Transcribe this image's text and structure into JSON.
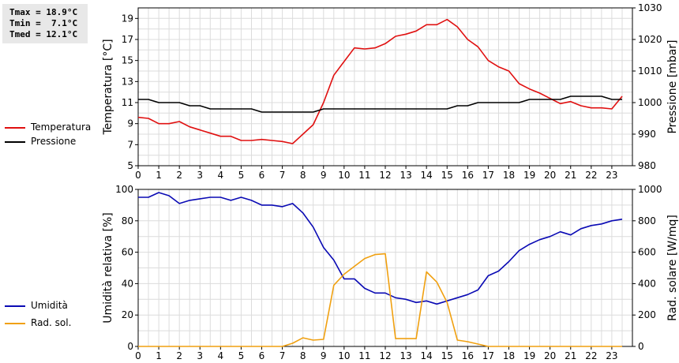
{
  "stats": {
    "tmax": "Tmax = 18.9°C",
    "tmin": "Tmin =  7.1°C",
    "tmed": "Tmed = 12.1°C"
  },
  "legend": {
    "temperature": {
      "label": "Temperatura",
      "color": "#e01010"
    },
    "pressure": {
      "label": "Pressione",
      "color": "#000000"
    },
    "humidity": {
      "label": "Umidità",
      "color": "#0a0ab4"
    },
    "solar": {
      "label": "Rad. sol.",
      "color": "#f0a010"
    }
  },
  "chart_data": [
    {
      "type": "line",
      "xlim": [
        0,
        24
      ],
      "x_ticks": [
        0,
        1,
        2,
        3,
        4,
        5,
        6,
        7,
        8,
        9,
        10,
        11,
        12,
        13,
        14,
        15,
        16,
        17,
        18,
        19,
        20,
        21,
        22,
        23
      ],
      "ylabel": "Temperatura [°C]",
      "ylim": [
        5,
        20
      ],
      "y_ticks": [
        5,
        7,
        9,
        11,
        13,
        15,
        17,
        19
      ],
      "y2label": "Pressione [mbar]",
      "y2lim": [
        980,
        1030
      ],
      "y2_ticks": [
        980,
        990,
        1000,
        1010,
        1020,
        1030
      ],
      "grid": true,
      "series": [
        {
          "name": "Temperatura",
          "axis": "left",
          "color": "#e01010",
          "x": [
            0,
            0.5,
            1,
            1.5,
            2,
            2.5,
            3,
            3.5,
            4,
            4.5,
            5,
            5.5,
            6,
            6.5,
            7,
            7.5,
            8,
            8.5,
            9,
            9.5,
            10,
            10.5,
            11,
            11.5,
            12,
            12.5,
            13,
            13.5,
            14,
            14.5,
            15,
            15.5,
            16,
            16.5,
            17,
            17.5,
            18,
            18.5,
            19,
            19.5,
            20,
            20.5,
            21,
            21.5,
            22,
            22.5,
            23,
            23.5
          ],
          "y": [
            9.6,
            9.5,
            9.0,
            9.0,
            9.2,
            8.7,
            8.4,
            8.1,
            7.8,
            7.8,
            7.4,
            7.4,
            7.5,
            7.4,
            7.3,
            7.1,
            8.0,
            8.9,
            11.0,
            13.6,
            14.9,
            16.2,
            16.1,
            16.2,
            16.6,
            17.3,
            17.5,
            17.8,
            18.4,
            18.4,
            18.9,
            18.2,
            17.0,
            16.3,
            15.0,
            14.4,
            14.0,
            12.8,
            12.3,
            11.9,
            11.4,
            10.9,
            11.1,
            10.7,
            10.5,
            10.5,
            10.4,
            11.6
          ]
        },
        {
          "name": "Pressione",
          "axis": "right",
          "color": "#000000",
          "x": [
            0,
            0.5,
            1,
            1.5,
            2,
            2.5,
            3,
            3.5,
            4,
            4.5,
            5,
            5.5,
            6,
            6.5,
            7,
            7.5,
            8,
            8.5,
            9,
            9.5,
            10,
            10.5,
            11,
            11.5,
            12,
            12.5,
            13,
            13.5,
            14,
            14.5,
            15,
            15.5,
            16,
            16.5,
            17,
            17.5,
            18,
            18.5,
            19,
            19.5,
            20,
            20.5,
            21,
            21.5,
            22,
            22.5,
            23,
            23.5
          ],
          "y": [
            1001,
            1001,
            1000,
            1000,
            1000,
            999,
            999,
            998,
            998,
            998,
            998,
            998,
            997,
            997,
            997,
            997,
            997,
            997,
            998,
            998,
            998,
            998,
            998,
            998,
            998,
            998,
            998,
            998,
            998,
            998,
            998,
            999,
            999,
            1000,
            1000,
            1000,
            1000,
            1000,
            1001,
            1001,
            1001,
            1001,
            1002,
            1002,
            1002,
            1002,
            1001,
            1001
          ]
        }
      ]
    },
    {
      "type": "line",
      "xlim": [
        0,
        24
      ],
      "x_ticks": [
        0,
        1,
        2,
        3,
        4,
        5,
        6,
        7,
        8,
        9,
        10,
        11,
        12,
        13,
        14,
        15,
        16,
        17,
        18,
        19,
        20,
        21,
        22,
        23
      ],
      "ylabel": "Umidità relativa [%]",
      "ylim": [
        0,
        100
      ],
      "y_ticks": [
        0,
        20,
        40,
        60,
        80,
        100
      ],
      "y2label": "Rad. solare [W/mq]",
      "y2lim": [
        0,
        1000
      ],
      "y2_ticks": [
        0,
        200,
        400,
        600,
        800,
        1000
      ],
      "grid": true,
      "series": [
        {
          "name": "Umidità",
          "axis": "left",
          "color": "#0a0ab4",
          "x": [
            0,
            0.5,
            1,
            1.5,
            2,
            2.5,
            3,
            3.5,
            4,
            4.5,
            5,
            5.5,
            6,
            6.5,
            7,
            7.5,
            8,
            8.5,
            9,
            9.5,
            10,
            10.5,
            11,
            11.5,
            12,
            12.5,
            13,
            13.5,
            14,
            14.5,
            15,
            15.5,
            16,
            16.5,
            17,
            17.5,
            18,
            18.5,
            19,
            19.5,
            20,
            20.5,
            21,
            21.5,
            22,
            22.5,
            23,
            23.5
          ],
          "y": [
            95,
            95,
            98,
            96,
            91,
            93,
            94,
            95,
            95,
            93,
            95,
            93,
            90,
            90,
            89,
            91,
            85,
            76,
            63,
            55,
            43,
            43,
            37,
            34,
            34,
            31,
            30,
            28,
            29,
            27,
            29,
            31,
            33,
            36,
            45,
            48,
            54,
            61,
            65,
            68,
            70,
            73,
            71,
            75,
            77,
            78,
            80,
            81
          ]
        },
        {
          "name": "Rad. sol.",
          "axis": "right",
          "color": "#f0a010",
          "x": [
            0,
            0.5,
            1,
            1.5,
            2,
            2.5,
            3,
            3.5,
            4,
            4.5,
            5,
            5.5,
            6,
            6.5,
            7,
            7.5,
            8,
            8.5,
            9,
            9.5,
            10,
            10.5,
            11,
            11.5,
            12,
            12.5,
            13,
            13.5,
            14,
            14.5,
            15,
            15.5,
            16,
            16.5,
            17,
            17.5,
            18,
            18.5,
            19,
            19.5,
            20,
            20.5,
            21,
            21.5,
            22,
            22.5,
            23,
            23.5
          ],
          "y": [
            0,
            0,
            0,
            0,
            0,
            0,
            0,
            0,
            0,
            0,
            0,
            0,
            0,
            0,
            0,
            20,
            55,
            40,
            45,
            390,
            460,
            510,
            560,
            585,
            590,
            50,
            50,
            50,
            475,
            410,
            280,
            40,
            30,
            15,
            0,
            0,
            0,
            0,
            0,
            0,
            0,
            0,
            0,
            0,
            0,
            0,
            0,
            0
          ]
        }
      ]
    }
  ]
}
